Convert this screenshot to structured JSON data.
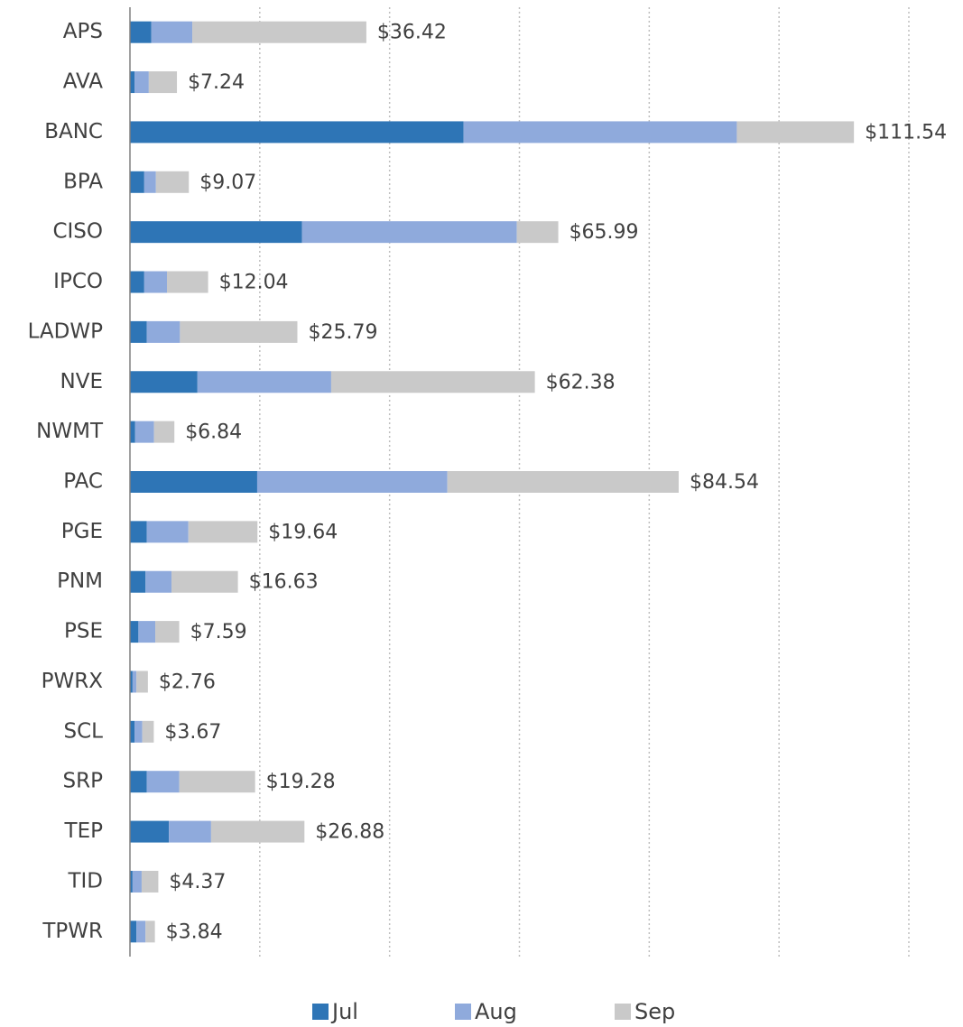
{
  "chart_data": {
    "type": "bar",
    "orientation": "horizontal",
    "stacked": true,
    "categories": [
      "APS",
      "AVA",
      "BANC",
      "BPA",
      "CISO",
      "IPCO",
      "LADWP",
      "NVE",
      "NWMT",
      "PAC",
      "PGE",
      "PNM",
      "PSE",
      "PWRX",
      "SCL",
      "SRP",
      "TEP",
      "TID",
      "TPWR"
    ],
    "series": [
      {
        "name": "Jul",
        "color": "#2e75b6",
        "values": [
          3.3,
          0.7,
          51.4,
          2.2,
          26.5,
          2.2,
          2.6,
          10.4,
          0.8,
          19.6,
          2.6,
          2.4,
          1.3,
          0.4,
          0.7,
          2.6,
          6.0,
          0.4,
          1.0
        ]
      },
      {
        "name": "Aug",
        "color": "#8faadc",
        "values": [
          6.3,
          2.2,
          42.1,
          1.8,
          33.1,
          3.5,
          5.1,
          20.6,
          2.9,
          29.3,
          6.4,
          4.0,
          2.6,
          0.6,
          1.2,
          5.0,
          6.5,
          1.4,
          1.4
        ]
      },
      {
        "name": "Sep",
        "color": "#c9c9c9",
        "values": [
          26.82,
          4.34,
          18.04,
          5.07,
          6.39,
          6.34,
          18.09,
          31.38,
          3.14,
          35.64,
          10.64,
          10.23,
          3.69,
          1.76,
          1.77,
          11.68,
          14.38,
          2.57,
          1.44
        ]
      }
    ],
    "totals": [
      36.42,
      7.24,
      111.54,
      9.07,
      65.99,
      12.04,
      25.79,
      62.38,
      6.84,
      84.54,
      19.64,
      16.63,
      7.59,
      2.76,
      3.67,
      19.28,
      26.88,
      4.37,
      3.84
    ],
    "total_labels": [
      "$36.42",
      "$7.24",
      "$111.54",
      "$9.07",
      "$65.99",
      "$12.04",
      "$25.79",
      "$62.38",
      "$6.84",
      "$84.54",
      "$19.64",
      "$16.63",
      "$7.59",
      "$2.76",
      "$3.67",
      "$19.28",
      "$26.88",
      "$4.37",
      "$3.84"
    ],
    "xlim": [
      0,
      120
    ],
    "xticks": [
      0,
      20,
      40,
      60,
      80,
      100,
      120
    ],
    "grid": true,
    "legend": "bottom"
  }
}
